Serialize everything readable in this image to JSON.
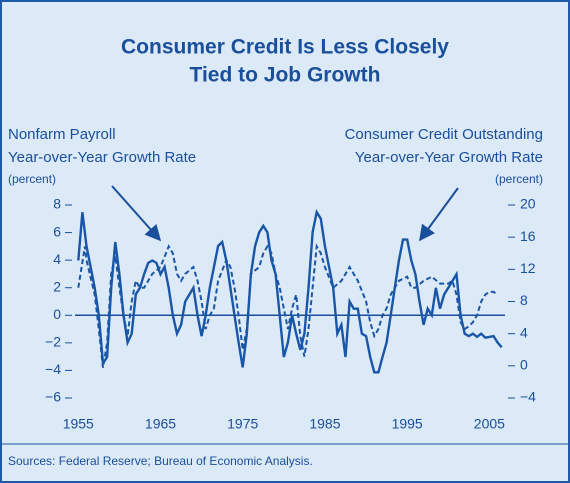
{
  "chart_data": {
    "type": "line",
    "title": [
      "Consumer Credit Is Less Closely",
      "Tied to Job Growth"
    ],
    "ylabel": "Year-over-Year Growth Rate",
    "yunit": "(percent)",
    "y2label": "Year-over-Year Growth Rate",
    "y2unit": "(percent)",
    "source": "Sources: Federal Reserve; Bureau of Economic Analysis.",
    "xlim": [
      1954.6,
      2006.9
    ],
    "xticks": [
      1955,
      1965,
      1975,
      1985,
      1995,
      2005
    ],
    "ylim": [
      -6,
      8
    ],
    "yticks": [
      {
        "value": -6,
        "label": "−6"
      },
      {
        "value": -4,
        "label": "−4"
      },
      {
        "value": -2,
        "label": "−2"
      },
      0,
      2,
      4,
      6,
      8
    ],
    "y2lim": [
      -4,
      20
    ],
    "y2ticks": [
      {
        "value": -4,
        "label": "−4"
      },
      0,
      4,
      8,
      12,
      16,
      20
    ],
    "series": [
      {
        "name": "Nonfarm Payroll",
        "color": "#1a56a8",
        "dash": true,
        "axis": "y",
        "x": [
          1955,
          1955.8,
          1956,
          1957,
          1957.5,
          1958,
          1958.5,
          1959,
          1959.5,
          1960,
          1960.5,
          1961,
          1961.5,
          1962,
          1962.5,
          1963,
          1963.5,
          1964,
          1965,
          1966,
          1966.5,
          1967,
          1967.5,
          1968,
          1969,
          1969.5,
          1970,
          1970.5,
          1971,
          1971.5,
          1972,
          1973,
          1973.5,
          1974,
          1974.5,
          1975,
          1975.5,
          1976,
          1977,
          1977.5,
          1978,
          1978.5,
          1979,
          1979.5,
          1980,
          1980.5,
          1981,
          1981.5,
          1982,
          1982.5,
          1983,
          1983.5,
          1984,
          1984.5,
          1985,
          1986,
          1987,
          1988,
          1989,
          1990,
          1990.5,
          1991,
          1991.5,
          1992,
          1992.5,
          1993,
          1994,
          1995,
          1995.5,
          1996,
          1997,
          1998,
          1999,
          2000,
          2000.5,
          2001,
          2001.5,
          2002,
          2002.5,
          2003,
          2003.5,
          2004,
          2004.5,
          2005,
          2005.5,
          2006
        ],
        "values": [
          2,
          5,
          4,
          1.5,
          -1,
          -3.8,
          -2,
          3,
          4.3,
          2,
          0,
          -1.5,
          1,
          2.5,
          2,
          2,
          2.5,
          3,
          3.5,
          5,
          4.5,
          3,
          2.5,
          3,
          3.5,
          2.5,
          1,
          -1,
          0,
          0.5,
          2.5,
          4,
          3.5,
          2,
          0,
          -2.5,
          -1,
          3,
          3.5,
          4.5,
          5,
          4.5,
          3,
          2,
          0.5,
          -1,
          0.5,
          1.5,
          -1.5,
          -3,
          -1,
          2,
          5,
          4.5,
          3.5,
          2,
          2.5,
          3.5,
          2.5,
          1,
          -0.5,
          -1.5,
          -1,
          0,
          0.5,
          1.5,
          2.5,
          2.8,
          2,
          2,
          2.5,
          2.8,
          2.3,
          2.3,
          2.5,
          1.5,
          -0.5,
          -1,
          -0.8,
          -0.5,
          0,
          1,
          1.5,
          1.7,
          1.7,
          1.5
        ]
      },
      {
        "name": "Consumer Credit Outstanding",
        "color": "#1a56a8",
        "dash": false,
        "axis": "y2",
        "x": [
          1955,
          1955.5,
          1956,
          1957,
          1957.5,
          1958,
          1958.5,
          1959,
          1959.5,
          1960,
          1960.5,
          1961,
          1961.5,
          1962,
          1962.5,
          1963,
          1963.5,
          1964,
          1964.5,
          1965,
          1965.5,
          1966,
          1966.5,
          1967,
          1967.5,
          1968,
          1969,
          1969.5,
          1970,
          1970.5,
          1971,
          1972,
          1972.5,
          1973,
          1974,
          1974.5,
          1975,
          1975.5,
          1976,
          1976.5,
          1977,
          1977.5,
          1978,
          1978.5,
          1979,
          1979.5,
          1980,
          1980.5,
          1981,
          1981.5,
          1982,
          1982.5,
          1983,
          1983.5,
          1984,
          1984.5,
          1985,
          1986,
          1986.5,
          1987,
          1987.5,
          1988,
          1988.5,
          1989,
          1989.5,
          1990,
          1990.5,
          1991,
          1991.5,
          1992,
          1992.5,
          1993,
          1993.5,
          1994,
          1994.5,
          1995,
          1995.5,
          1996,
          1996.5,
          1997,
          1997.5,
          1998,
          1998.5,
          1999,
          1999.5,
          2000,
          2001,
          2001.5,
          2002,
          2002.5,
          2003,
          2003.5,
          2004,
          2004.5,
          2005,
          2005.5,
          2006,
          2006.5
        ],
        "values": [
          13.1,
          19.1,
          14.9,
          9.7,
          6.3,
          0.3,
          1.1,
          9.7,
          15.4,
          11.4,
          6.3,
          2.9,
          4.0,
          8.9,
          9.7,
          11.4,
          12.8,
          13.1,
          12.8,
          11.4,
          12.3,
          9.7,
          6.3,
          4.0,
          5.1,
          8.0,
          9.7,
          6.3,
          3.7,
          6.3,
          9.7,
          14.9,
          15.4,
          13.1,
          6.3,
          2.9,
          -0.2,
          4.0,
          11.4,
          14.9,
          16.6,
          17.4,
          16.6,
          13.1,
          11.4,
          6.3,
          1.1,
          2.9,
          6.3,
          4.0,
          2.0,
          4.0,
          9.7,
          16.6,
          19.1,
          18.3,
          14.9,
          9.7,
          4.0,
          5.1,
          1.1,
          8.0,
          7.1,
          7.1,
          4.0,
          3.7,
          1.1,
          -0.8,
          -0.8,
          1.1,
          2.9,
          6.3,
          9.7,
          13.1,
          15.7,
          15.7,
          13.1,
          11.4,
          8.0,
          5.1,
          7.1,
          6.3,
          9.7,
          7.1,
          8.9,
          9.7,
          11.4,
          6.3,
          4.0,
          3.7,
          4.0,
          3.6,
          4.0,
          3.5,
          3.6,
          3.7,
          2.9,
          2.3
        ]
      }
    ]
  }
}
